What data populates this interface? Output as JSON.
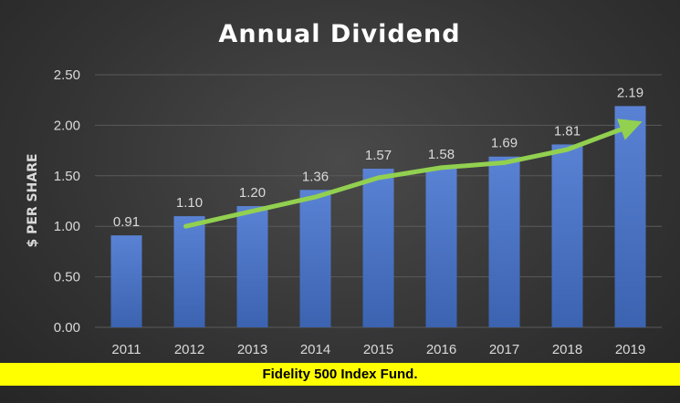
{
  "banner": {
    "text": "Fidelity 500 Index Fund."
  },
  "colors": {
    "bar": "#4472c4",
    "trend": "#92d050",
    "banner": "#ffff00"
  },
  "chart_data": {
    "type": "bar",
    "title": "Annual Dividend",
    "xlabel": "",
    "ylabel": "$ PER SHARE",
    "ylim": [
      0,
      2.5
    ],
    "yticks": [
      "0.00",
      "0.50",
      "1.00",
      "1.50",
      "2.00",
      "2.50"
    ],
    "grid": true,
    "categories": [
      "2011",
      "2012",
      "2013",
      "2014",
      "2015",
      "2016",
      "2017",
      "2018",
      "2019"
    ],
    "values": [
      0.91,
      1.1,
      1.2,
      1.36,
      1.57,
      1.58,
      1.69,
      1.81,
      2.19
    ],
    "data_labels": [
      "0.91",
      "1.10",
      "1.20",
      "1.36",
      "1.57",
      "1.58",
      "1.69",
      "1.81",
      "2.19"
    ],
    "annotations": [
      {
        "type": "trend-arrow",
        "color": "#92d050",
        "from_category": "2012",
        "to_category": "2019",
        "values": [
          1.0,
          1.15,
          1.29,
          1.48,
          1.58,
          1.63,
          1.76,
          2.0
        ]
      }
    ]
  }
}
